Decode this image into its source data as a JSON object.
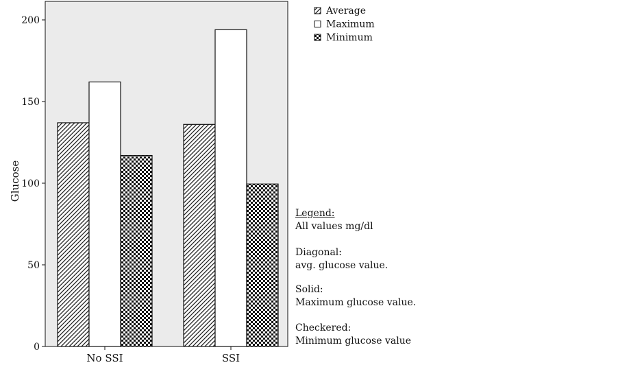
{
  "chart_data": {
    "type": "bar",
    "title": "",
    "xlabel": "",
    "ylabel": "Glucose",
    "ylim": [
      0,
      210
    ],
    "yticks": [
      0,
      50,
      100,
      150,
      200
    ],
    "categories": [
      "No SSI",
      "SSI"
    ],
    "series": [
      {
        "name": "Average",
        "values": [
          137,
          136
        ],
        "pattern": "diagonal"
      },
      {
        "name": "Maximum",
        "values": [
          162,
          194
        ],
        "pattern": "solid"
      },
      {
        "name": "Minimum",
        "values": [
          117,
          99.5
        ],
        "pattern": "checkered"
      }
    ],
    "legend_position": "top-right",
    "grid": false,
    "plot_background": "#ebebeb",
    "bar_fill": "#ffffff",
    "stroke_color": "#111111"
  },
  "notes": {
    "title": "Legend:",
    "units": "All values mg/dl",
    "diagonal_label": "Diagonal:",
    "diagonal_desc": "avg. glucose value.",
    "solid_label": "Solid:",
    "solid_desc": "Maximum glucose value.",
    "checkered_label": "Checkered:",
    "checkered_desc": "Minimum glucose value"
  }
}
